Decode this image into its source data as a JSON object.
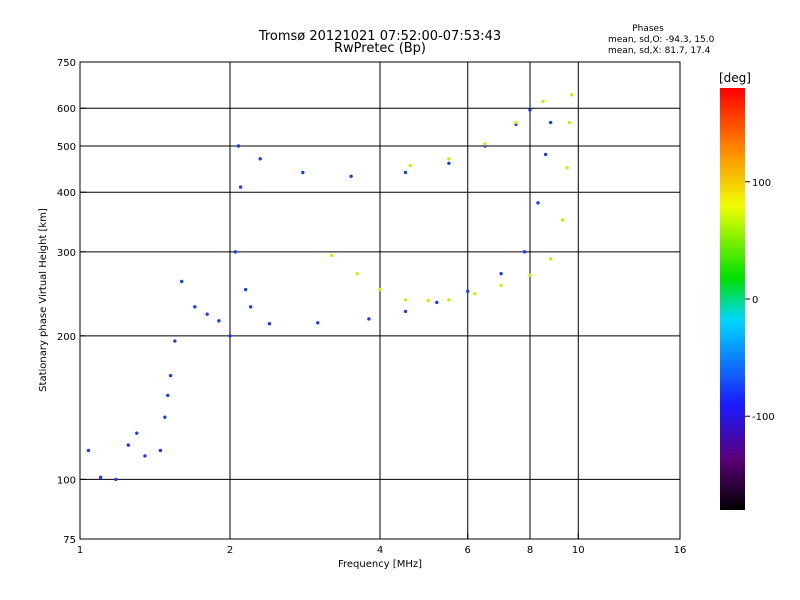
{
  "chart_data": {
    "type": "scatter",
    "title": "Tromsø 20121021 07:52:00-07:53:43",
    "subtitle": "RwPretec (Bp)",
    "xlabel": "Frequency [MHz]",
    "ylabel": "Stationary phase Virtual Height [km]",
    "x_scale": "log",
    "y_scale": "log",
    "xlim": [
      1,
      16
    ],
    "ylim": [
      75,
      750
    ],
    "x_ticks": [
      1,
      2,
      4,
      6,
      8,
      10,
      16
    ],
    "y_ticks": [
      75,
      100,
      200,
      300,
      400,
      500,
      600,
      750
    ],
    "x_gridlines": [
      2,
      4,
      6,
      8,
      10
    ],
    "y_gridlines": [
      100,
      200,
      300,
      400,
      500,
      600
    ],
    "grid": true,
    "stats": {
      "heading": "Phases",
      "line_o": "mean, sd,O: -94.3, 15.0",
      "line_x": "mean, sd,X:  81.7, 17.4"
    },
    "colorbar": {
      "label": "[deg]",
      "min": -180,
      "max": 180,
      "ticks": [
        100,
        0,
        -100
      ],
      "scale": "rainbow: black-purple-blue-cyan-green-yellow-orange-red"
    },
    "series": [
      {
        "phase_deg": -100,
        "color": "#1b3cf0",
        "points": [
          [
            1.04,
            115
          ],
          [
            1.1,
            101
          ],
          [
            1.18,
            100
          ],
          [
            1.25,
            118
          ],
          [
            1.3,
            125
          ],
          [
            1.35,
            112
          ],
          [
            1.45,
            115
          ],
          [
            1.48,
            135
          ],
          [
            1.5,
            150
          ],
          [
            1.52,
            165
          ],
          [
            1.55,
            195
          ],
          [
            1.6,
            260
          ],
          [
            1.7,
            230
          ],
          [
            1.8,
            222
          ],
          [
            1.9,
            215
          ],
          [
            2.0,
            200
          ],
          [
            2.05,
            300
          ],
          [
            2.08,
            500
          ],
          [
            2.1,
            410
          ],
          [
            2.15,
            250
          ],
          [
            2.2,
            230
          ],
          [
            2.4,
            212
          ],
          [
            3.0,
            213
          ],
          [
            3.8,
            217
          ],
          [
            4.5,
            225
          ],
          [
            5.2,
            235
          ],
          [
            6.0,
            248
          ],
          [
            7.0,
            270
          ],
          [
            7.8,
            300
          ],
          [
            8.3,
            380
          ],
          [
            8.6,
            480
          ],
          [
            8.8,
            560
          ],
          [
            2.3,
            470
          ],
          [
            2.8,
            440
          ],
          [
            3.5,
            432
          ],
          [
            4.5,
            440
          ],
          [
            5.5,
            460
          ],
          [
            6.5,
            500
          ],
          [
            7.5,
            555
          ],
          [
            8.0,
            595
          ]
        ]
      },
      {
        "phase_deg": 80,
        "color": "#c8f000",
        "points": [
          [
            3.2,
            295
          ],
          [
            3.6,
            270
          ],
          [
            4.0,
            250
          ],
          [
            4.5,
            238
          ],
          [
            5.0,
            237
          ],
          [
            5.5,
            238
          ],
          [
            6.2,
            245
          ],
          [
            7.0,
            255
          ],
          [
            8.0,
            268
          ],
          [
            8.8,
            290
          ],
          [
            9.3,
            350
          ],
          [
            9.5,
            450
          ],
          [
            9.6,
            560
          ],
          [
            9.7,
            640
          ],
          [
            4.6,
            455
          ],
          [
            5.5,
            470
          ],
          [
            6.5,
            505
          ],
          [
            7.5,
            560
          ],
          [
            8.5,
            620
          ]
        ]
      }
    ]
  }
}
